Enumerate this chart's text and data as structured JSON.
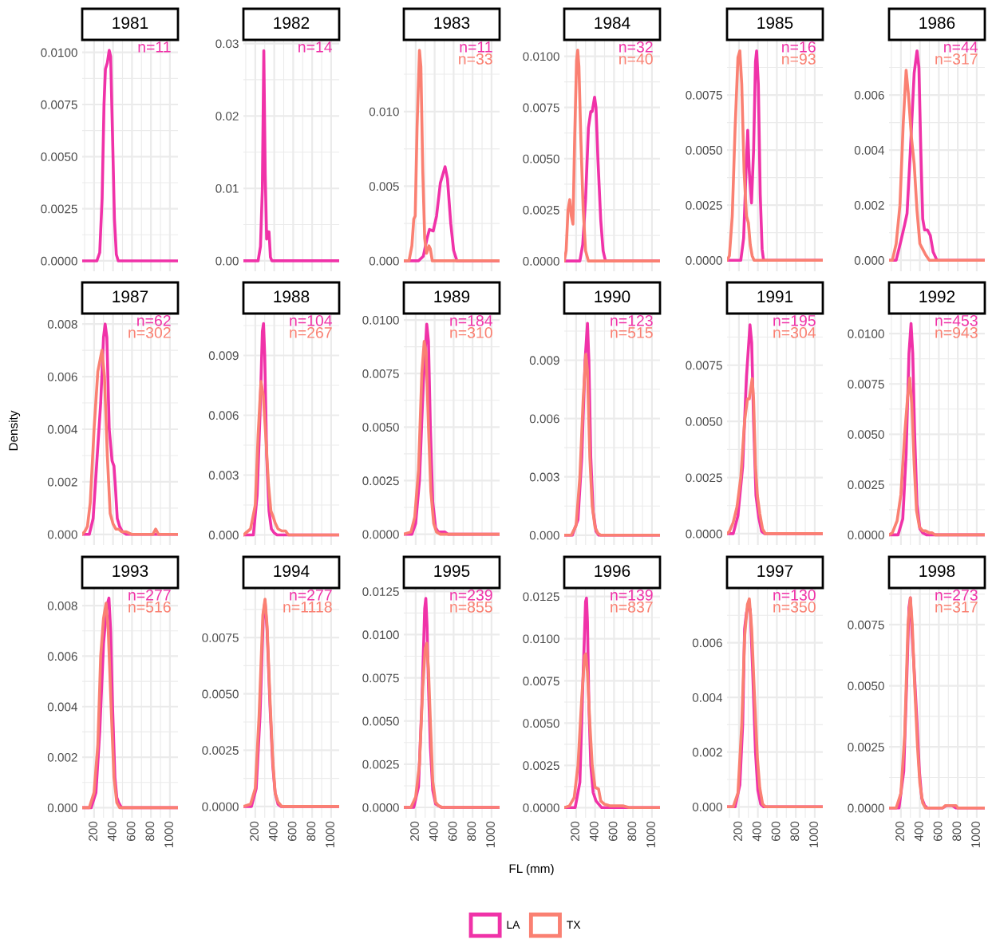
{
  "chart_data": [
    {
      "type": "line",
      "title": "1981",
      "grid": true,
      "tick_labels": "y",
      "xlim": [
        75,
        1085
      ],
      "xticks": [
        200,
        400,
        600,
        800,
        1000
      ],
      "ylim": [
        -0.0005,
        0.0106
      ],
      "yticks": [
        {
          "value": 0,
          "label": "0.0000"
        },
        {
          "value": 0.0025,
          "label": "0.0025"
        },
        {
          "value": 0.005,
          "label": "0.0050"
        },
        {
          "value": 0.0075,
          "label": "0.0075"
        },
        {
          "value": 0.01,
          "label": "0.0100"
        }
      ],
      "annotations": [
        "n=11"
      ],
      "series": [
        {
          "color": "#f032a8",
          "x": [
            75,
            230,
            260,
            285,
            305,
            320,
            340,
            360,
            375,
            395,
            415,
            435,
            455,
            1085
          ],
          "values": [
            0,
            0,
            0.0004,
            0.003,
            0.0075,
            0.0092,
            0.0095,
            0.0101,
            0.0098,
            0.006,
            0.002,
            0.0003,
            0,
            0
          ]
        }
      ]
    },
    {
      "type": "line",
      "title": "1982",
      "grid": true,
      "tick_labels": "y",
      "xlim": [
        75,
        1085
      ],
      "xticks": [
        200,
        400,
        600,
        800,
        1000
      ],
      "ylim": [
        -0.00145,
        0.0305
      ],
      "yticks": [
        {
          "value": 0,
          "label": "0.00"
        },
        {
          "value": 0.01,
          "label": "0.01"
        },
        {
          "value": 0.02,
          "label": "0.02"
        },
        {
          "value": 0.03,
          "label": "0.03"
        }
      ],
      "annotations": [
        "n=14"
      ],
      "series": [
        {
          "color": "#f032a8",
          "x": [
            75,
            230,
            255,
            275,
            290,
            305,
            320,
            335,
            345,
            360,
            375,
            1085
          ],
          "values": [
            0,
            0,
            0.002,
            0.01,
            0.029,
            0.012,
            0.003,
            0.004,
            0.004,
            0.0005,
            0,
            0
          ]
        }
      ]
    },
    {
      "type": "line",
      "title": "1983",
      "grid": true,
      "tick_labels": "y",
      "xlim": [
        75,
        1085
      ],
      "xticks": [
        200,
        400,
        600,
        800,
        1000
      ],
      "ylim": [
        -0.0007,
        0.0148
      ],
      "yticks": [
        {
          "value": 0,
          "label": "0.000"
        },
        {
          "value": 0.005,
          "label": "0.005"
        },
        {
          "value": 0.01,
          "label": "0.010"
        }
      ],
      "annotations": [
        "n=11",
        "n=33"
      ],
      "series": [
        {
          "color": "#f032a8",
          "x": [
            75,
            230,
            280,
            320,
            345,
            385,
            420,
            460,
            510,
            535,
            570,
            600,
            635,
            1085
          ],
          "values": [
            0,
            0,
            0.0003,
            0.0015,
            0.0021,
            0.002,
            0.003,
            0.0052,
            0.0063,
            0.0055,
            0.0025,
            0.0007,
            0,
            0
          ]
        },
        {
          "color": "#fa8072",
          "x": [
            75,
            130,
            160,
            180,
            195,
            215,
            240,
            255,
            275,
            295,
            315,
            340,
            355,
            375,
            1085
          ],
          "values": [
            0,
            0,
            0.001,
            0.0028,
            0.003,
            0.009,
            0.0141,
            0.013,
            0.006,
            0.0015,
            0.0005,
            0.001,
            0.0008,
            0,
            0
          ]
        }
      ]
    },
    {
      "type": "line",
      "title": "1984",
      "grid": true,
      "tick_labels": "y",
      "xlim": [
        75,
        1085
      ],
      "xticks": [
        200,
        400,
        600,
        800,
        1000
      ],
      "ylim": [
        -0.0005,
        0.0108
      ],
      "yticks": [
        {
          "value": 0,
          "label": "0.0000"
        },
        {
          "value": 0.0025,
          "label": "0.0025"
        },
        {
          "value": 0.005,
          "label": "0.0050"
        },
        {
          "value": 0.0075,
          "label": "0.0075"
        },
        {
          "value": 0.01,
          "label": "0.0100"
        }
      ],
      "annotations": [
        "n=32",
        "n=40"
      ],
      "series": [
        {
          "color": "#f032a8",
          "x": [
            75,
            240,
            270,
            300,
            330,
            355,
            370,
            395,
            410,
            430,
            460,
            485,
            510,
            1085
          ],
          "values": [
            0,
            0,
            0.0008,
            0.003,
            0.0065,
            0.0073,
            0.0073,
            0.008,
            0.0075,
            0.005,
            0.002,
            0.0005,
            0,
            0
          ]
        },
        {
          "color": "#fa8072",
          "x": [
            75,
            95,
            115,
            133,
            150,
            167,
            185,
            205,
            217,
            230,
            250,
            275,
            300,
            330,
            1085
          ],
          "values": [
            0,
            0.0005,
            0.0025,
            0.003,
            0.0022,
            0.0018,
            0.006,
            0.0098,
            0.0103,
            0.0095,
            0.006,
            0.0025,
            0.0005,
            0,
            0
          ]
        }
      ]
    },
    {
      "type": "line",
      "title": "1985",
      "grid": true,
      "tick_labels": "y",
      "xlim": [
        75,
        1085
      ],
      "xticks": [
        200,
        400,
        600,
        800,
        1000
      ],
      "ylim": [
        -0.0005,
        0.01
      ],
      "yticks": [
        {
          "value": 0,
          "label": "0.0000"
        },
        {
          "value": 0.0025,
          "label": "0.0025"
        },
        {
          "value": 0.005,
          "label": "0.0050"
        },
        {
          "value": 0.0075,
          "label": "0.0075"
        }
      ],
      "annotations": [
        "n=16",
        "n=93"
      ],
      "series": [
        {
          "color": "#f032a8",
          "x": [
            75,
            220,
            250,
            275,
            293,
            310,
            333,
            355,
            375,
            387,
            405,
            425,
            445,
            460,
            1085
          ],
          "values": [
            0,
            0,
            0.001,
            0.004,
            0.0059,
            0.004,
            0.0026,
            0.005,
            0.009,
            0.0095,
            0.008,
            0.003,
            0.0005,
            0,
            0
          ]
        },
        {
          "color": "#fa8072",
          "x": [
            75,
            100,
            130,
            160,
            190,
            210,
            230,
            255,
            280,
            300,
            320,
            340,
            360,
            1085
          ],
          "values": [
            0,
            0.0002,
            0.002,
            0.006,
            0.0092,
            0.0095,
            0.008,
            0.004,
            0.002,
            0.0017,
            0.0007,
            0.0002,
            0,
            0
          ]
        }
      ]
    },
    {
      "type": "line",
      "title": "1986",
      "grid": true,
      "tick_labels": "y",
      "xlim": [
        75,
        1085
      ],
      "xticks": [
        200,
        400,
        600,
        800,
        1000
      ],
      "ylim": [
        -0.0004,
        0.008
      ],
      "yticks": [
        {
          "value": 0,
          "label": "0.000"
        },
        {
          "value": 0.002,
          "label": "0.002"
        },
        {
          "value": 0.004,
          "label": "0.004"
        },
        {
          "value": 0.006,
          "label": "0.006"
        }
      ],
      "annotations": [
        "n=44",
        "n=317"
      ],
      "series": [
        {
          "color": "#f032a8",
          "x": [
            75,
            150,
            200,
            240,
            265,
            300,
            340,
            370,
            390,
            410,
            430,
            450,
            480,
            510,
            540,
            580,
            1085
          ],
          "values": [
            0,
            0,
            0.0007,
            0.0013,
            0.0017,
            0.004,
            0.0068,
            0.0076,
            0.007,
            0.004,
            0.0015,
            0.0011,
            0.0011,
            0.0009,
            0.0003,
            0,
            0
          ]
        },
        {
          "color": "#fa8072",
          "x": [
            75,
            110,
            150,
            190,
            225,
            255,
            280,
            310,
            340,
            370,
            400,
            430,
            460,
            500,
            1085
          ],
          "values": [
            0,
            0,
            0.0006,
            0.002,
            0.005,
            0.0069,
            0.006,
            0.0045,
            0.0035,
            0.0018,
            0.0006,
            0.0004,
            0.0002,
            0,
            0
          ]
        }
      ]
    },
    {
      "type": "line",
      "title": "1987",
      "ylabel": "Density",
      "grid": true,
      "tick_labels": "y",
      "xlim": [
        75,
        1085
      ],
      "xticks": [
        200,
        400,
        600,
        800,
        1000
      ],
      "ylim": [
        -0.0004,
        0.0084
      ],
      "yticks": [
        {
          "value": 0,
          "label": "0.000"
        },
        {
          "value": 0.002,
          "label": "0.002"
        },
        {
          "value": 0.004,
          "label": "0.004"
        },
        {
          "value": 0.006,
          "label": "0.006"
        },
        {
          "value": 0.008,
          "label": "0.008"
        }
      ],
      "annotations": [
        "n=62",
        "n=302"
      ],
      "series": [
        {
          "color": "#f032a8",
          "x": [
            75,
            150,
            190,
            230,
            270,
            300,
            317,
            335,
            360,
            390,
            410,
            425,
            445,
            470,
            500,
            540,
            1085
          ],
          "values": [
            0,
            0,
            0.0006,
            0.0028,
            0.005,
            0.0075,
            0.008,
            0.0075,
            0.004,
            0.0028,
            0.0026,
            0.0018,
            0.0006,
            0.0003,
            0.0001,
            0,
            0
          ]
        },
        {
          "color": "#fa8072",
          "x": [
            75,
            100,
            130,
            160,
            200,
            240,
            283,
            310,
            340,
            370,
            400,
            430,
            460,
            490,
            540,
            600,
            820,
            850,
            880,
            1085
          ],
          "values": [
            0,
            0.0001,
            0.0003,
            0.0012,
            0.004,
            0.0062,
            0.007,
            0.006,
            0.003,
            0.0008,
            0.0004,
            0.0002,
            0.0002,
            0.0001,
            0.0001,
            0,
            0,
            0.0002,
            0,
            0
          ]
        }
      ]
    },
    {
      "type": "line",
      "title": "1988",
      "grid": true,
      "tick_labels": "y",
      "xlim": [
        75,
        1085
      ],
      "xticks": [
        200,
        400,
        600,
        800,
        1000
      ],
      "ylim": [
        -0.0005,
        0.0111
      ],
      "yticks": [
        {
          "value": 0,
          "label": "0.000"
        },
        {
          "value": 0.003,
          "label": "0.003"
        },
        {
          "value": 0.006,
          "label": "0.006"
        },
        {
          "value": 0.009,
          "label": "0.009"
        }
      ],
      "annotations": [
        "n=104",
        "n=267"
      ],
      "series": [
        {
          "color": "#f032a8",
          "x": [
            75,
            180,
            220,
            250,
            275,
            287,
            300,
            320,
            345,
            370,
            400,
            430,
            1085
          ],
          "values": [
            0,
            0,
            0.002,
            0.006,
            0.0102,
            0.0106,
            0.009,
            0.004,
            0.0012,
            0.0003,
            0.0001,
            0,
            0
          ]
        },
        {
          "color": "#fa8072",
          "x": [
            75,
            100,
            150,
            200,
            230,
            260,
            285,
            310,
            340,
            365,
            390,
            410,
            440,
            480,
            520,
            550,
            1085
          ],
          "values": [
            0,
            0.0001,
            0.0003,
            0.0015,
            0.005,
            0.0077,
            0.007,
            0.005,
            0.0025,
            0.0012,
            0.0009,
            0.0006,
            0.0003,
            0.0002,
            0.0002,
            0,
            0
          ]
        }
      ]
    },
    {
      "type": "line",
      "title": "1989",
      "grid": true,
      "tick_labels": "y",
      "xlim": [
        75,
        1085
      ],
      "xticks": [
        200,
        400,
        600,
        800,
        1000
      ],
      "ylim": [
        -0.0005,
        0.0103
      ],
      "yticks": [
        {
          "value": 0,
          "label": "0.0000"
        },
        {
          "value": 0.0025,
          "label": "0.0025"
        },
        {
          "value": 0.005,
          "label": "0.0050"
        },
        {
          "value": 0.0075,
          "label": "0.0075"
        },
        {
          "value": 0.01,
          "label": "0.0100"
        }
      ],
      "annotations": [
        "n=184",
        "n=310"
      ],
      "series": [
        {
          "color": "#f032a8",
          "x": [
            75,
            160,
            200,
            240,
            280,
            317,
            335,
            355,
            380,
            410,
            440,
            480,
            510,
            540,
            1085
          ],
          "values": [
            0,
            0,
            0.0005,
            0.0025,
            0.007,
            0.0098,
            0.009,
            0.005,
            0.0015,
            0.0003,
            0.0001,
            0.0001,
            0.0001,
            0,
            0
          ]
        },
        {
          "color": "#fa8072",
          "x": [
            75,
            150,
            190,
            230,
            265,
            290,
            310,
            335,
            360,
            390,
            420,
            460,
            1085
          ],
          "values": [
            0,
            0.0001,
            0.0008,
            0.003,
            0.0075,
            0.009,
            0.0085,
            0.005,
            0.002,
            0.0005,
            0.0001,
            0,
            0
          ]
        }
      ]
    },
    {
      "type": "line",
      "title": "1990",
      "grid": true,
      "tick_labels": "y",
      "xlim": [
        75,
        1085
      ],
      "xticks": [
        200,
        400,
        600,
        800,
        1000
      ],
      "ylim": [
        -0.0005,
        0.0114
      ],
      "yticks": [
        {
          "value": 0,
          "label": "0.000"
        },
        {
          "value": 0.003,
          "label": "0.003"
        },
        {
          "value": 0.006,
          "label": "0.006"
        },
        {
          "value": 0.009,
          "label": "0.009"
        }
      ],
      "annotations": [
        "n=123",
        "n=515"
      ],
      "series": [
        {
          "color": "#f032a8",
          "x": [
            75,
            160,
            220,
            260,
            295,
            320,
            335,
            355,
            380,
            410,
            440,
            1085
          ],
          "values": [
            0,
            0,
            0.0008,
            0.004,
            0.009,
            0.0109,
            0.009,
            0.004,
            0.0012,
            0.0002,
            0,
            0
          ]
        },
        {
          "color": "#fa8072",
          "x": [
            75,
            150,
            200,
            240,
            275,
            303,
            320,
            345,
            370,
            400,
            430,
            460,
            1085
          ],
          "values": [
            0,
            0,
            0.0005,
            0.003,
            0.007,
            0.0093,
            0.0085,
            0.004,
            0.0015,
            0.0004,
            0.0001,
            0,
            0
          ]
        }
      ]
    },
    {
      "type": "line",
      "title": "1991",
      "grid": true,
      "tick_labels": "y",
      "xlim": [
        75,
        1085
      ],
      "xticks": [
        200,
        400,
        600,
        800,
        1000
      ],
      "ylim": [
        -0.0005,
        0.0098
      ],
      "yticks": [
        {
          "value": 0,
          "label": "0.0000"
        },
        {
          "value": 0.0025,
          "label": "0.0025"
        },
        {
          "value": 0.005,
          "label": "0.0050"
        },
        {
          "value": 0.0075,
          "label": "0.0075"
        }
      ],
      "annotations": [
        "n=195",
        "n=304"
      ],
      "series": [
        {
          "color": "#f032a8",
          "x": [
            75,
            140,
            190,
            240,
            280,
            317,
            335,
            355,
            380,
            410,
            440,
            470,
            1085
          ],
          "values": [
            0,
            0,
            0.0008,
            0.003,
            0.007,
            0.0093,
            0.0085,
            0.005,
            0.0017,
            0.0007,
            0.0001,
            0,
            0
          ]
        },
        {
          "color": "#fa8072",
          "x": [
            75,
            100,
            140,
            180,
            220,
            260,
            290,
            310,
            340,
            355,
            375,
            395,
            420,
            450,
            480,
            1085
          ],
          "values": [
            0,
            0.0001,
            0.0005,
            0.0012,
            0.0025,
            0.005,
            0.006,
            0.006,
            0.0069,
            0.006,
            0.003,
            0.0017,
            0.0009,
            0.0002,
            0,
            0
          ]
        }
      ]
    },
    {
      "type": "line",
      "title": "1992",
      "grid": true,
      "tick_labels": "y",
      "xlim": [
        75,
        1085
      ],
      "xticks": [
        200,
        400,
        600,
        800,
        1000
      ],
      "ylim": [
        -0.0005,
        0.011
      ],
      "yticks": [
        {
          "value": 0,
          "label": "0.0000"
        },
        {
          "value": 0.0025,
          "label": "0.0025"
        },
        {
          "value": 0.005,
          "label": "0.0050"
        },
        {
          "value": 0.0075,
          "label": "0.0075"
        },
        {
          "value": 0.01,
          "label": "0.0100"
        }
      ],
      "annotations": [
        "n=453",
        "n=943"
      ],
      "series": [
        {
          "color": "#f032a8",
          "x": [
            75,
            170,
            220,
            255,
            285,
            307,
            325,
            345,
            370,
            400,
            430,
            470,
            1085
          ],
          "values": [
            0,
            0,
            0.0008,
            0.004,
            0.009,
            0.0105,
            0.009,
            0.005,
            0.0015,
            0.0003,
            0.0001,
            0,
            0
          ]
        },
        {
          "color": "#fa8072",
          "x": [
            75,
            110,
            160,
            200,
            240,
            270,
            293,
            315,
            340,
            365,
            395,
            430,
            460,
            500,
            530,
            560,
            1085
          ],
          "values": [
            0,
            0.0001,
            0.0007,
            0.002,
            0.005,
            0.0068,
            0.0078,
            0.0065,
            0.0035,
            0.0012,
            0.0004,
            0.0002,
            0.0002,
            0.0001,
            0.0001,
            0,
            0
          ]
        }
      ]
    },
    {
      "type": "line",
      "title": "1993",
      "grid": true,
      "xlim": [
        75,
        1085
      ],
      "xticks": [
        200,
        400,
        600,
        800,
        1000
      ],
      "ylim": [
        -0.0004,
        0.0087
      ],
      "yticks": [
        {
          "value": 0,
          "label": "0.000"
        },
        {
          "value": 0.002,
          "label": "0.002"
        },
        {
          "value": 0.004,
          "label": "0.004"
        },
        {
          "value": 0.006,
          "label": "0.006"
        },
        {
          "value": 0.008,
          "label": "0.008"
        }
      ],
      "annotations": [
        "n=277",
        "n=516"
      ],
      "series": [
        {
          "color": "#f032a8",
          "x": [
            75,
            170,
            220,
            260,
            300,
            335,
            357,
            375,
            395,
            420,
            440,
            460,
            490,
            1085
          ],
          "values": [
            0,
            0,
            0.0006,
            0.003,
            0.0065,
            0.008,
            0.0083,
            0.007,
            0.004,
            0.0012,
            0.0004,
            0.0002,
            0,
            0
          ]
        },
        {
          "color": "#fa8072",
          "x": [
            75,
            150,
            200,
            240,
            270,
            300,
            327,
            350,
            380,
            410,
            440,
            470,
            1085
          ],
          "values": [
            0,
            0,
            0.0006,
            0.0025,
            0.006,
            0.0075,
            0.0081,
            0.007,
            0.004,
            0.0012,
            0.0002,
            0,
            0
          ]
        }
      ]
    },
    {
      "type": "line",
      "title": "1994",
      "grid": true,
      "xlim": [
        75,
        1085
      ],
      "xticks": [
        200,
        400,
        600,
        800,
        1000
      ],
      "ylim": [
        -0.0005,
        0.0097
      ],
      "yticks": [
        {
          "value": 0,
          "label": "0.0000"
        },
        {
          "value": 0.0025,
          "label": "0.0025"
        },
        {
          "value": 0.005,
          "label": "0.0050"
        },
        {
          "value": 0.0075,
          "label": "0.0075"
        }
      ],
      "annotations": [
        "n=277",
        "n=1118"
      ],
      "series": [
        {
          "color": "#f032a8",
          "x": [
            75,
            160,
            210,
            250,
            285,
            303,
            325,
            355,
            385,
            410,
            440,
            470,
            1085
          ],
          "values": [
            0,
            0,
            0.0008,
            0.004,
            0.0085,
            0.0091,
            0.0078,
            0.0045,
            0.0018,
            0.0006,
            0.0001,
            0,
            0
          ]
        },
        {
          "color": "#fa8072",
          "x": [
            75,
            150,
            200,
            240,
            280,
            303,
            325,
            355,
            385,
            410,
            440,
            480,
            1085
          ],
          "values": [
            0,
            0.0001,
            0.0008,
            0.004,
            0.0085,
            0.0092,
            0.008,
            0.0048,
            0.002,
            0.0006,
            0.0002,
            0,
            0
          ]
        }
      ]
    },
    {
      "type": "line",
      "title": "1995",
      "xlabel": "FL (mm)",
      "legend": "bottom",
      "grid": true,
      "xlim": [
        75,
        1085
      ],
      "xticks": [
        200,
        400,
        600,
        800,
        1000
      ],
      "ylim": [
        -0.0006,
        0.0127
      ],
      "yticks": [
        {
          "value": 0,
          "label": "0.0000"
        },
        {
          "value": 0.0025,
          "label": "0.0025"
        },
        {
          "value": 0.005,
          "label": "0.0050"
        },
        {
          "value": 0.0075,
          "label": "0.0075"
        },
        {
          "value": 0.01,
          "label": "0.0100"
        },
        {
          "value": 0.0125,
          "label": "0.0125"
        }
      ],
      "annotations": [
        "n=239",
        "n=855"
      ],
      "series": [
        {
          "name": "LA",
          "color": "#f032a8",
          "x": [
            75,
            180,
            230,
            265,
            295,
            307,
            320,
            335,
            355,
            380,
            410,
            440,
            470,
            1085
          ],
          "values": [
            0,
            0,
            0.0012,
            0.006,
            0.0115,
            0.0121,
            0.0105,
            0.007,
            0.0035,
            0.001,
            0.0002,
            0.0001,
            0,
            0
          ]
        },
        {
          "name": "TX",
          "color": "#fa8072",
          "x": [
            75,
            150,
            200,
            240,
            275,
            300,
            317,
            335,
            355,
            380,
            410,
            440,
            480,
            1085
          ],
          "values": [
            0,
            0,
            0.0006,
            0.0025,
            0.007,
            0.0092,
            0.0095,
            0.008,
            0.005,
            0.0015,
            0.0003,
            0.0001,
            0,
            0
          ]
        }
      ]
    },
    {
      "type": "line",
      "title": "1996",
      "grid": true,
      "xlim": [
        75,
        1085
      ],
      "xticks": [
        200,
        400,
        600,
        800,
        1000
      ],
      "ylim": [
        -0.0006,
        0.013
      ],
      "yticks": [
        {
          "value": 0,
          "label": "0.0000"
        },
        {
          "value": 0.0025,
          "label": "0.0025"
        },
        {
          "value": 0.005,
          "label": "0.0050"
        },
        {
          "value": 0.0075,
          "label": "0.0075"
        },
        {
          "value": 0.01,
          "label": "0.0100"
        },
        {
          "value": 0.0125,
          "label": "0.0125"
        }
      ],
      "annotations": [
        "n=139",
        "n=837"
      ],
      "series": [
        {
          "color": "#f032a8",
          "x": [
            75,
            190,
            240,
            275,
            300,
            310,
            320,
            335,
            355,
            380,
            410,
            440,
            470,
            1085
          ],
          "values": [
            0,
            0,
            0.0015,
            0.008,
            0.0122,
            0.0124,
            0.011,
            0.006,
            0.0025,
            0.0009,
            0.0004,
            0.0002,
            0,
            0
          ]
        },
        {
          "color": "#fa8072",
          "x": [
            75,
            130,
            180,
            220,
            260,
            290,
            303,
            320,
            345,
            370,
            400,
            437,
            460,
            500,
            560,
            620,
            700,
            760,
            1085
          ],
          "values": [
            0,
            0.0001,
            0.0006,
            0.0025,
            0.0065,
            0.009,
            0.0091,
            0.008,
            0.005,
            0.0025,
            0.0012,
            0.0011,
            0.0004,
            0.0002,
            0.0001,
            0.0001,
            0.0001,
            0,
            0
          ]
        }
      ]
    },
    {
      "type": "line",
      "title": "1997",
      "grid": true,
      "xlim": [
        75,
        1085
      ],
      "xticks": [
        200,
        400,
        600,
        800,
        1000
      ],
      "ylim": [
        -0.0004,
        0.008
      ],
      "yticks": [
        {
          "value": 0,
          "label": "0.000"
        },
        {
          "value": 0.002,
          "label": "0.002"
        },
        {
          "value": 0.004,
          "label": "0.004"
        },
        {
          "value": 0.006,
          "label": "0.006"
        }
      ],
      "annotations": [
        "n=130",
        "n=350"
      ],
      "series": [
        {
          "color": "#f032a8",
          "x": [
            75,
            160,
            210,
            240,
            260,
            280,
            300,
            320,
            345,
            375,
            400,
            430,
            460,
            1085
          ],
          "values": [
            0,
            0,
            0.0008,
            0.003,
            0.0065,
            0.0071,
            0.0074,
            0.0072,
            0.005,
            0.002,
            0.0006,
            0.0001,
            0,
            0
          ]
        },
        {
          "color": "#fa8072",
          "x": [
            75,
            140,
            190,
            230,
            260,
            290,
            310,
            335,
            365,
            395,
            420,
            450,
            480,
            1085
          ],
          "values": [
            0,
            0,
            0.0005,
            0.003,
            0.0062,
            0.0074,
            0.0076,
            0.0065,
            0.004,
            0.0018,
            0.0007,
            0.0001,
            0,
            0
          ]
        }
      ]
    },
    {
      "type": "line",
      "title": "1998",
      "grid": true,
      "xlim": [
        75,
        1085
      ],
      "xticks": [
        200,
        400,
        600,
        800,
        1000
      ],
      "ylim": [
        -0.0004,
        0.009
      ],
      "yticks": [
        {
          "value": 0,
          "label": "0.0000"
        },
        {
          "value": 0.0025,
          "label": "0.0025"
        },
        {
          "value": 0.005,
          "label": "0.0050"
        },
        {
          "value": 0.0075,
          "label": "0.0075"
        }
      ],
      "annotations": [
        "n=273",
        "n=317"
      ],
      "series": [
        {
          "color": "#f032a8",
          "x": [
            75,
            180,
            230,
            260,
            285,
            300,
            320,
            345,
            370,
            395,
            420,
            450,
            480,
            640,
            680,
            740,
            780,
            1085
          ],
          "values": [
            0,
            0,
            0.0015,
            0.005,
            0.0082,
            0.0086,
            0.007,
            0.0053,
            0.0035,
            0.0015,
            0.0004,
            0.0001,
            0,
            0,
            0.0001,
            0.0001,
            0,
            0
          ]
        },
        {
          "color": "#fa8072",
          "x": [
            75,
            150,
            200,
            240,
            275,
            300,
            320,
            345,
            375,
            400,
            430,
            460,
            640,
            670,
            720,
            780,
            800,
            1085
          ],
          "values": [
            0,
            0,
            0.0006,
            0.003,
            0.0075,
            0.0086,
            0.0075,
            0.005,
            0.0025,
            0.001,
            0.0002,
            0,
            0,
            0.0001,
            0.0001,
            0.0001,
            0,
            0
          ]
        }
      ]
    }
  ]
}
